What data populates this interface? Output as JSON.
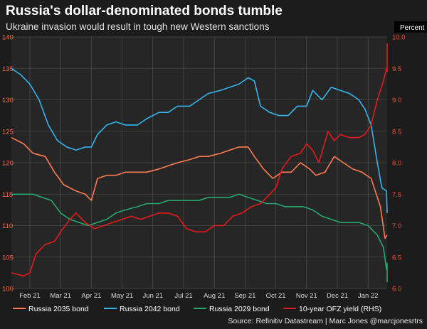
{
  "title": "Russia's dollar-denominated bonds tumble",
  "subtitle": "Ukraine invasion would result in tough new Western sanctions",
  "source": "Source: Refinitiv Datastream | Marc Jones @marcjonesrtrs",
  "colors": {
    "background": "#1c1c1c",
    "plot_background": "#262626",
    "grid": "#4a4a4a",
    "russia_2035": "#ff7a4f",
    "russia_2042": "#33b5f0",
    "russia_2029": "#27a870",
    "ofz_yield": "#e51a1a"
  },
  "chart_data": {
    "type": "line",
    "title": "Russia's dollar-denominated bonds tumble",
    "subtitle": "Ukraine invasion would result in tough new Western sanctions",
    "x_ticks": [
      "Feb 21",
      "Mar 21",
      "Apr 21",
      "May 21",
      "Jun 21",
      "Jul 21",
      "Aug 21",
      "Sep 21",
      "Oct 21",
      "Nov 21",
      "Dec 21",
      "Jan 22"
    ],
    "x_range": [
      0,
      12.6
    ],
    "y_left": {
      "ylim": [
        100,
        140
      ],
      "ticks": [
        100,
        105,
        110,
        115,
        120,
        125,
        130,
        135,
        140
      ]
    },
    "y_right": {
      "label": "Percent",
      "ylim": [
        6.0,
        10.0
      ],
      "ticks": [
        "6.0",
        "6.5",
        "7.0",
        "7.5",
        "8.0",
        "8.5",
        "9.0",
        "9.5",
        "10.0"
      ]
    },
    "grid": true,
    "legend_position": "bottom",
    "series": [
      {
        "name": "Russia 2035 bond",
        "axis": "left",
        "color": "#ff7a4f",
        "points": [
          [
            -0.6,
            124
          ],
          [
            -0.2,
            123
          ],
          [
            0.1,
            121.5
          ],
          [
            0.5,
            121
          ],
          [
            0.8,
            118.5
          ],
          [
            1.1,
            116.5
          ],
          [
            1.5,
            115.5
          ],
          [
            1.8,
            115
          ],
          [
            2.0,
            114
          ],
          [
            2.2,
            117.5
          ],
          [
            2.5,
            118
          ],
          [
            2.8,
            118
          ],
          [
            3.1,
            118.5
          ],
          [
            3.5,
            118.5
          ],
          [
            3.8,
            118.5
          ],
          [
            4.2,
            119
          ],
          [
            4.5,
            119.5
          ],
          [
            4.8,
            120
          ],
          [
            5.2,
            120.5
          ],
          [
            5.5,
            121
          ],
          [
            5.8,
            121
          ],
          [
            6.2,
            121.5
          ],
          [
            6.5,
            122
          ],
          [
            6.8,
            122.5
          ],
          [
            7.1,
            122.5
          ],
          [
            7.3,
            121
          ],
          [
            7.6,
            119
          ],
          [
            7.9,
            117.5
          ],
          [
            8.2,
            118.5
          ],
          [
            8.5,
            118.5
          ],
          [
            8.8,
            120
          ],
          [
            9.1,
            119
          ],
          [
            9.3,
            118
          ],
          [
            9.6,
            118.5
          ],
          [
            9.9,
            121
          ],
          [
            10.2,
            120
          ],
          [
            10.5,
            119
          ],
          [
            10.8,
            118.5
          ],
          [
            11.1,
            117.5
          ],
          [
            11.4,
            113
          ],
          [
            11.55,
            108
          ],
          [
            11.7,
            108.5
          ],
          [
            11.8,
            108.5
          ]
        ]
      },
      {
        "name": "Russia 2042 bond",
        "axis": "left",
        "color": "#33b5f0",
        "points": [
          [
            -0.6,
            135
          ],
          [
            -0.3,
            134
          ],
          [
            0.0,
            132.5
          ],
          [
            0.3,
            130
          ],
          [
            0.6,
            126
          ],
          [
            0.9,
            123.5
          ],
          [
            1.2,
            122.5
          ],
          [
            1.5,
            122
          ],
          [
            1.8,
            122.5
          ],
          [
            2.0,
            122.5
          ],
          [
            2.2,
            124.5
          ],
          [
            2.5,
            126
          ],
          [
            2.8,
            126.5
          ],
          [
            3.1,
            126
          ],
          [
            3.5,
            126
          ],
          [
            3.8,
            127
          ],
          [
            4.2,
            128
          ],
          [
            4.5,
            128
          ],
          [
            4.8,
            129
          ],
          [
            5.2,
            129
          ],
          [
            5.5,
            130
          ],
          [
            5.8,
            131
          ],
          [
            6.2,
            131.5
          ],
          [
            6.5,
            132
          ],
          [
            6.8,
            132.5
          ],
          [
            7.1,
            133.5
          ],
          [
            7.3,
            133
          ],
          [
            7.5,
            129
          ],
          [
            7.8,
            128
          ],
          [
            8.1,
            127.5
          ],
          [
            8.4,
            127.5
          ],
          [
            8.7,
            129
          ],
          [
            9.0,
            129
          ],
          [
            9.2,
            131.5
          ],
          [
            9.5,
            130
          ],
          [
            9.8,
            132
          ],
          [
            10.1,
            131.5
          ],
          [
            10.4,
            131
          ],
          [
            10.7,
            130
          ],
          [
            10.9,
            128.5
          ],
          [
            11.1,
            126
          ],
          [
            11.3,
            120
          ],
          [
            11.45,
            116
          ],
          [
            11.6,
            115.5
          ],
          [
            11.8,
            112
          ]
        ]
      },
      {
        "name": "Russia 2029 bond",
        "axis": "left",
        "color": "#27a870",
        "points": [
          [
            -0.6,
            115
          ],
          [
            -0.2,
            115
          ],
          [
            0.1,
            115
          ],
          [
            0.4,
            114.5
          ],
          [
            0.7,
            114
          ],
          [
            1.0,
            112
          ],
          [
            1.3,
            111
          ],
          [
            1.6,
            110.5
          ],
          [
            1.9,
            110
          ],
          [
            2.2,
            110.5
          ],
          [
            2.5,
            111
          ],
          [
            2.8,
            112
          ],
          [
            3.1,
            112.5
          ],
          [
            3.5,
            113
          ],
          [
            3.8,
            113.5
          ],
          [
            4.2,
            113.5
          ],
          [
            4.5,
            114
          ],
          [
            4.8,
            114
          ],
          [
            5.2,
            114
          ],
          [
            5.5,
            114
          ],
          [
            5.8,
            114.5
          ],
          [
            6.2,
            114.5
          ],
          [
            6.5,
            114.5
          ],
          [
            6.8,
            115
          ],
          [
            7.1,
            114.5
          ],
          [
            7.4,
            114
          ],
          [
            7.7,
            113.5
          ],
          [
            8.0,
            113.5
          ],
          [
            8.3,
            113
          ],
          [
            8.6,
            113
          ],
          [
            8.9,
            113
          ],
          [
            9.2,
            112.5
          ],
          [
            9.5,
            111.5
          ],
          [
            9.8,
            111
          ],
          [
            10.1,
            110.5
          ],
          [
            10.4,
            110.5
          ],
          [
            10.7,
            110.5
          ],
          [
            11.0,
            110
          ],
          [
            11.3,
            108.5
          ],
          [
            11.5,
            106.5
          ],
          [
            11.6,
            103
          ],
          [
            11.7,
            104
          ],
          [
            11.8,
            101
          ]
        ]
      },
      {
        "name": "10-year OFZ yield (RHS)",
        "axis": "right",
        "color": "#e51a1a",
        "points": [
          [
            -0.6,
            6.25
          ],
          [
            -0.2,
            6.2
          ],
          [
            0.0,
            6.25
          ],
          [
            0.2,
            6.55
          ],
          [
            0.5,
            6.7
          ],
          [
            0.8,
            6.75
          ],
          [
            1.0,
            6.9
          ],
          [
            1.3,
            7.1
          ],
          [
            1.5,
            7.2
          ],
          [
            1.8,
            7.05
          ],
          [
            2.1,
            6.95
          ],
          [
            2.4,
            7.0
          ],
          [
            2.7,
            7.05
          ],
          [
            3.0,
            7.1
          ],
          [
            3.3,
            7.15
          ],
          [
            3.6,
            7.1
          ],
          [
            3.9,
            7.15
          ],
          [
            4.2,
            7.2
          ],
          [
            4.5,
            7.2
          ],
          [
            4.8,
            7.15
          ],
          [
            5.1,
            6.95
          ],
          [
            5.4,
            6.9
          ],
          [
            5.7,
            6.9
          ],
          [
            6.0,
            7.0
          ],
          [
            6.3,
            7.0
          ],
          [
            6.6,
            7.15
          ],
          [
            6.9,
            7.2
          ],
          [
            7.2,
            7.3
          ],
          [
            7.5,
            7.35
          ],
          [
            7.8,
            7.5
          ],
          [
            8.0,
            7.6
          ],
          [
            8.2,
            7.9
          ],
          [
            8.5,
            8.1
          ],
          [
            8.8,
            8.15
          ],
          [
            9.0,
            8.3
          ],
          [
            9.2,
            8.2
          ],
          [
            9.4,
            8.0
          ],
          [
            9.7,
            8.5
          ],
          [
            9.9,
            8.35
          ],
          [
            10.1,
            8.45
          ],
          [
            10.4,
            8.4
          ],
          [
            10.7,
            8.4
          ],
          [
            10.9,
            8.45
          ],
          [
            11.1,
            8.6
          ],
          [
            11.3,
            9.0
          ],
          [
            11.5,
            9.3
          ],
          [
            11.6,
            9.5
          ],
          [
            11.7,
            9.45
          ],
          [
            11.75,
            9.7
          ],
          [
            11.8,
            9.9
          ]
        ]
      }
    ]
  }
}
